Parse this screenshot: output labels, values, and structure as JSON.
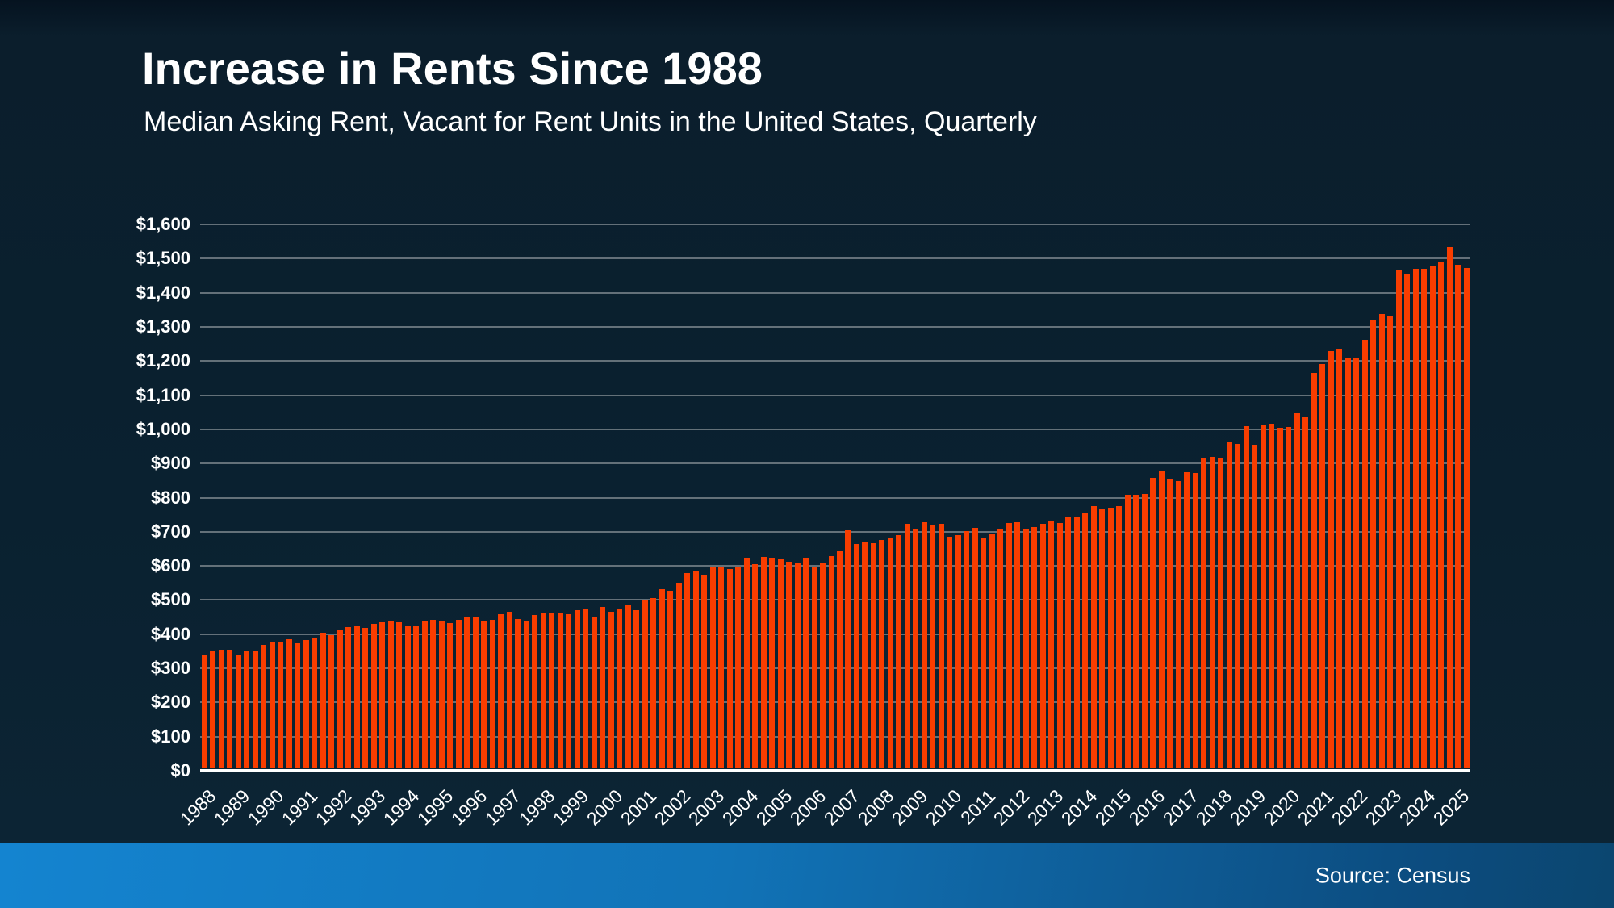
{
  "title": "Increase in Rents Since 1988",
  "subtitle": "Median Asking Rent, Vacant for Rent Units in the United States, Quarterly",
  "source_label": "Source: Census",
  "colors": {
    "background": "#0B2130",
    "bar": "#F93D00",
    "gridline": "#7D888E",
    "axis_line": "#FFFFFF",
    "text": "#FFFFFF",
    "footer_left": "#1484D0",
    "footer_right": "#0C4C7F"
  },
  "chart_data": {
    "type": "bar",
    "title": "Increase in Rents Since 1988",
    "subtitle": "Median Asking Rent, Vacant for Rent Units in the United States, Quarterly",
    "xlabel": "",
    "ylabel": "",
    "ylim": [
      0,
      1600
    ],
    "grid": true,
    "legend": "none",
    "frequency": "quarterly",
    "series_start": "1988-Q1",
    "series_end": "2025-Q2",
    "y_ticks": [
      {
        "value": 0,
        "label": "$0"
      },
      {
        "value": 100,
        "label": "$100"
      },
      {
        "value": 200,
        "label": "$200"
      },
      {
        "value": 300,
        "label": "$300"
      },
      {
        "value": 400,
        "label": "$400"
      },
      {
        "value": 500,
        "label": "$500"
      },
      {
        "value": 600,
        "label": "$600"
      },
      {
        "value": 700,
        "label": "$700"
      },
      {
        "value": 800,
        "label": "$800"
      },
      {
        "value": 900,
        "label": "$900"
      },
      {
        "value": 1000,
        "label": "$1,000"
      },
      {
        "value": 1100,
        "label": "$1,100"
      },
      {
        "value": 1200,
        "label": "$1,200"
      },
      {
        "value": 1300,
        "label": "$1,300"
      },
      {
        "value": 1400,
        "label": "$1,400"
      },
      {
        "value": 1500,
        "label": "$1,500"
      },
      {
        "value": 1600,
        "label": "$1,600"
      }
    ],
    "x_year_labels": [
      "1988",
      "1989",
      "1990",
      "1991",
      "1992",
      "1993",
      "1994",
      "1995",
      "1996",
      "1997",
      "1998",
      "1999",
      "2000",
      "2001",
      "2002",
      "2003",
      "2004",
      "2005",
      "2006",
      "2007",
      "2008",
      "2009",
      "2010",
      "2011",
      "2012",
      "2013",
      "2014",
      "2015",
      "2016",
      "2017",
      "2018",
      "2019",
      "2020",
      "2021",
      "2022",
      "2023",
      "2024",
      "2025"
    ],
    "values": [
      334,
      345,
      348,
      348,
      333,
      343,
      345,
      362,
      370,
      372,
      378,
      366,
      375,
      384,
      398,
      390,
      407,
      414,
      419,
      411,
      422,
      427,
      433,
      427,
      415,
      419,
      429,
      436,
      431,
      425,
      435,
      441,
      443,
      429,
      434,
      451,
      459,
      438,
      429,
      448,
      457,
      457,
      456,
      452,
      463,
      466,
      443,
      473,
      458,
      466,
      477,
      464,
      491,
      498,
      525,
      520,
      543,
      571,
      576,
      567,
      590,
      588,
      583,
      590,
      616,
      598,
      620,
      616,
      612,
      606,
      602,
      616,
      592,
      601,
      621,
      635,
      698,
      658,
      661,
      659,
      670,
      676,
      683,
      717,
      702,
      721,
      713,
      715,
      678,
      682,
      694,
      704,
      676,
      686,
      700,
      718,
      721,
      702,
      706,
      716,
      726,
      718,
      738,
      736,
      748,
      769,
      758,
      761,
      768,
      802,
      802,
      803,
      852,
      871,
      848,
      842,
      867,
      864,
      911,
      913,
      909,
      956,
      951,
      1002,
      947,
      1008,
      1010,
      998,
      1000,
      1040,
      1029,
      1159,
      1184,
      1222,
      1226,
      1201,
      1204,
      1256,
      1314,
      1331,
      1327,
      1460,
      1446,
      1462,
      1464,
      1470,
      1482,
      1526,
      1474,
      1466
    ]
  }
}
